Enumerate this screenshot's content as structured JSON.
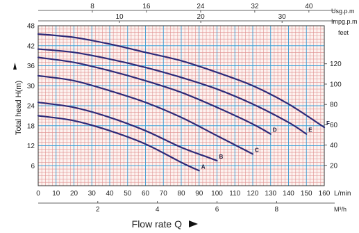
{
  "chart_data": {
    "type": "line",
    "x_unit": "L/min",
    "y_unit": "H(m)",
    "xlim": [
      0,
      160
    ],
    "ylim": [
      0,
      48
    ],
    "x_ticks": [
      "0",
      "10",
      "20",
      "30",
      "40",
      "50",
      "60",
      "70",
      "80",
      "90",
      "100",
      "110",
      "120",
      "130",
      "140",
      "150",
      "160"
    ],
    "y_ticks": [
      "6",
      "12",
      "18",
      "24",
      "30",
      "36",
      "42",
      "48"
    ],
    "ylabel": "Total head H(m)",
    "xlabel": "Flow rate Q",
    "top_axes": [
      {
        "unit": "Usg.p.m",
        "ticks": [
          "8",
          "16",
          "24",
          "32",
          "40"
        ],
        "values": [
          8,
          16,
          24,
          32,
          40
        ],
        "factor_lpm": 3.785
      },
      {
        "unit": "Impg.p.m",
        "ticks": [
          "10",
          "20",
          "30"
        ],
        "values": [
          10,
          20,
          30
        ],
        "factor_lpm": 4.546
      }
    ],
    "right_axis": {
      "unit": "feet",
      "ticks": [
        "20",
        "40",
        "60",
        "80",
        "100",
        "120"
      ],
      "values": [
        20,
        40,
        60,
        80,
        100,
        120
      ],
      "factor_m": 0.3048
    },
    "bottom_axis2": {
      "unit": "M³/h",
      "ticks": [
        "2",
        "4",
        "6",
        "8"
      ],
      "values": [
        2,
        4,
        6,
        8
      ],
      "factor_lpm": 16.667
    },
    "series": [
      {
        "name": "A",
        "x": [
          0,
          20,
          40,
          60,
          80,
          90
        ],
        "y": [
          21,
          19.5,
          16.5,
          12.5,
          7,
          4.5
        ]
      },
      {
        "name": "B",
        "x": [
          0,
          20,
          40,
          60,
          80,
          95,
          100
        ],
        "y": [
          25,
          23.5,
          20.5,
          16.5,
          11.5,
          8.5,
          7.5
        ]
      },
      {
        "name": "C",
        "x": [
          0,
          20,
          40,
          60,
          80,
          100,
          120
        ],
        "y": [
          33,
          31.5,
          28.5,
          25,
          20.5,
          15,
          9.5
        ]
      },
      {
        "name": "D",
        "x": [
          0,
          20,
          40,
          60,
          80,
          100,
          120,
          130
        ],
        "y": [
          38.5,
          37,
          34.5,
          31.5,
          28,
          23.5,
          18.5,
          15.5
        ]
      },
      {
        "name": "E",
        "x": [
          0,
          20,
          40,
          60,
          80,
          100,
          120,
          140,
          150
        ],
        "y": [
          41,
          40,
          38,
          35.5,
          32.5,
          29,
          24.5,
          19,
          15.5
        ]
      },
      {
        "name": "F",
        "x": [
          0,
          20,
          40,
          60,
          80,
          100,
          120,
          140,
          160
        ],
        "y": [
          45.5,
          44.5,
          42.5,
          40,
          37.5,
          34,
          30,
          24.5,
          17.5
        ]
      }
    ],
    "colors": {
      "grid_minor": "#e09090",
      "grid_major": "#3a9ed6",
      "curve": "#2e2a78",
      "axis": "#333333"
    }
  }
}
